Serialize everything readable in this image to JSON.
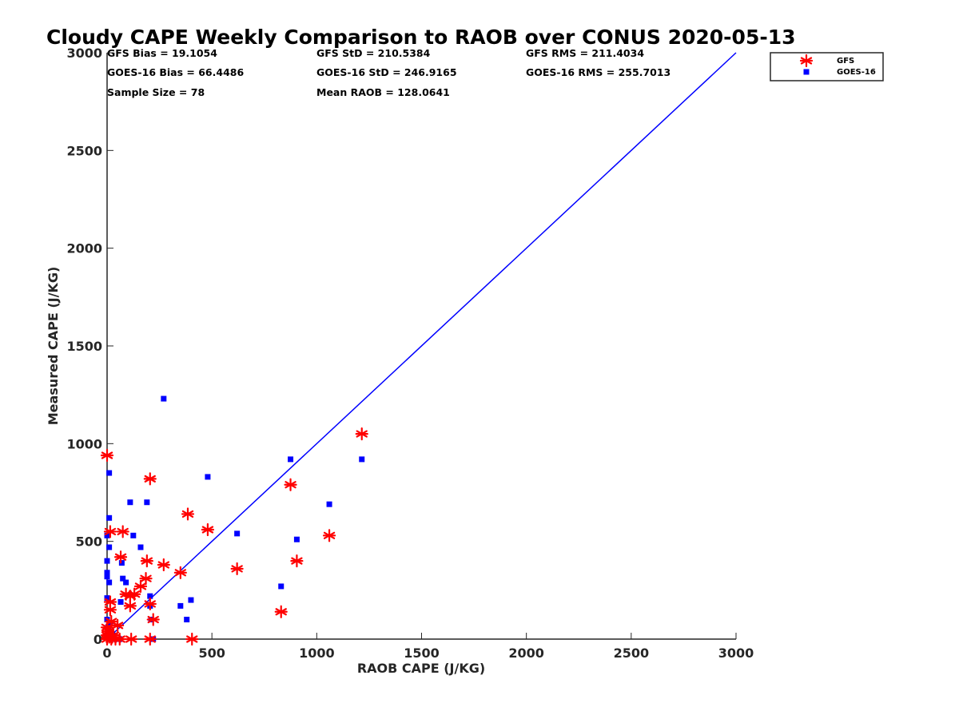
{
  "chart_data": {
    "type": "scatter",
    "title": "Cloudy CAPE Weekly Comparison to RAOB over CONUS 2020-05-13",
    "xlabel": "RAOB CAPE (J/KG)",
    "ylabel": "Measured CAPE (J/KG)",
    "xlim": [
      0,
      3000
    ],
    "ylim": [
      0,
      3000
    ],
    "xticks": [
      "0",
      "500",
      "1000",
      "1500",
      "2000",
      "2500",
      "3000"
    ],
    "yticks": [
      "0",
      "500",
      "1000",
      "1500",
      "2000",
      "2500",
      "3000"
    ],
    "grid": false,
    "legend_position": "top-right, outside plot",
    "stats": [
      [
        "GFS Bias = 19.1054",
        "GFS StD = 210.5384",
        "GFS RMS = 211.4034"
      ],
      [
        "GOES-16 Bias = 66.4486",
        "GOES-16 StD = 246.9165",
        "GOES-16 RMS = 255.7013"
      ],
      [
        "Sample Size = 78",
        "Mean RAOB = 128.0641",
        ""
      ]
    ],
    "reference_line": {
      "x": [
        0,
        3000
      ],
      "y": [
        0,
        3000
      ],
      "color": "#0000ff"
    },
    "series": [
      {
        "name": "GFS",
        "marker": "asterisk",
        "color": "#ff0000",
        "points": [
          [
            0,
            940
          ],
          [
            0,
            60
          ],
          [
            0,
            20
          ],
          [
            0,
            0
          ],
          [
            5,
            40
          ],
          [
            10,
            10
          ],
          [
            15,
            550
          ],
          [
            15,
            190
          ],
          [
            15,
            150
          ],
          [
            20,
            90
          ],
          [
            20,
            0
          ],
          [
            25,
            10
          ],
          [
            30,
            20
          ],
          [
            40,
            0
          ],
          [
            50,
            70
          ],
          [
            60,
            0
          ],
          [
            65,
            420
          ],
          [
            75,
            550
          ],
          [
            90,
            230
          ],
          [
            110,
            220
          ],
          [
            110,
            170
          ],
          [
            115,
            0
          ],
          [
            130,
            230
          ],
          [
            160,
            270
          ],
          [
            185,
            310
          ],
          [
            190,
            400
          ],
          [
            205,
            820
          ],
          [
            205,
            180
          ],
          [
            205,
            0
          ],
          [
            220,
            100
          ],
          [
            270,
            380
          ],
          [
            350,
            340
          ],
          [
            385,
            640
          ],
          [
            405,
            0
          ],
          [
            480,
            560
          ],
          [
            620,
            360
          ],
          [
            830,
            140
          ],
          [
            875,
            790
          ],
          [
            905,
            400
          ],
          [
            1060,
            530
          ],
          [
            1215,
            1050
          ]
        ]
      },
      {
        "name": "GOES-16",
        "marker": "square",
        "color": "#0000ff",
        "points": [
          [
            0,
            530
          ],
          [
            0,
            400
          ],
          [
            0,
            340
          ],
          [
            0,
            320
          ],
          [
            0,
            210
          ],
          [
            0,
            100
          ],
          [
            0,
            20
          ],
          [
            5,
            60
          ],
          [
            10,
            850
          ],
          [
            10,
            620
          ],
          [
            10,
            470
          ],
          [
            10,
            290
          ],
          [
            10,
            0
          ],
          [
            15,
            80
          ],
          [
            20,
            40
          ],
          [
            25,
            20
          ],
          [
            30,
            0
          ],
          [
            60,
            0
          ],
          [
            65,
            190
          ],
          [
            70,
            390
          ],
          [
            75,
            310
          ],
          [
            90,
            290
          ],
          [
            110,
            700
          ],
          [
            125,
            530
          ],
          [
            160,
            470
          ],
          [
            190,
            700
          ],
          [
            205,
            220
          ],
          [
            205,
            170
          ],
          [
            210,
            100
          ],
          [
            220,
            0
          ],
          [
            270,
            1230
          ],
          [
            350,
            170
          ],
          [
            380,
            100
          ],
          [
            400,
            200
          ],
          [
            480,
            830
          ],
          [
            620,
            540
          ],
          [
            830,
            270
          ],
          [
            875,
            920
          ],
          [
            905,
            510
          ],
          [
            1060,
            690
          ],
          [
            1215,
            920
          ]
        ]
      }
    ]
  }
}
